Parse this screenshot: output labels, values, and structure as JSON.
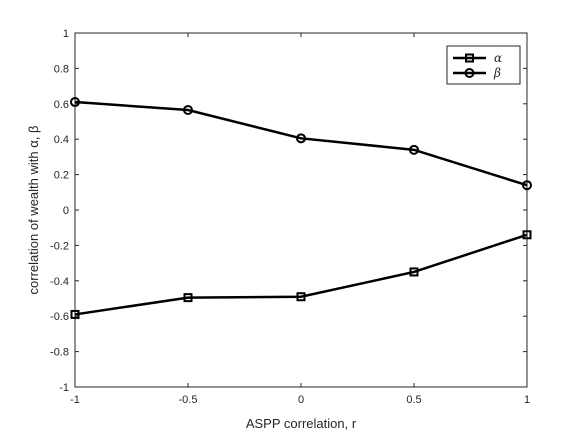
{
  "chart_data": {
    "type": "line",
    "title": "",
    "xlabel": "ASPP correlation, r",
    "ylabel": "correlation of wealth with α, β",
    "xlim": [
      -1,
      1
    ],
    "ylim": [
      -1,
      1
    ],
    "xticks": [
      -1,
      -0.5,
      0,
      0.5,
      1
    ],
    "xtick_labels": [
      "-1",
      "-0.5",
      "0",
      "0.5",
      "1"
    ],
    "yticks": [
      -1,
      -0.8,
      -0.6,
      -0.4,
      -0.2,
      0,
      0.2,
      0.4,
      0.6,
      0.8,
      1
    ],
    "ytick_labels": [
      "-1",
      "-0.8",
      "-0.6",
      "-0.4",
      "-0.2",
      "0",
      "0.2",
      "0.4",
      "0.6",
      "0.8",
      "1"
    ],
    "grid": false,
    "legend_position": "top-right",
    "x": [
      -1,
      -0.5,
      0,
      0.5,
      1
    ],
    "series": [
      {
        "name": "α",
        "marker": "square",
        "color": "#000000",
        "values": [
          -0.59,
          -0.495,
          -0.49,
          -0.35,
          -0.14
        ]
      },
      {
        "name": "β",
        "marker": "circle",
        "color": "#000000",
        "values": [
          0.61,
          0.565,
          0.405,
          0.34,
          0.14
        ]
      }
    ]
  }
}
